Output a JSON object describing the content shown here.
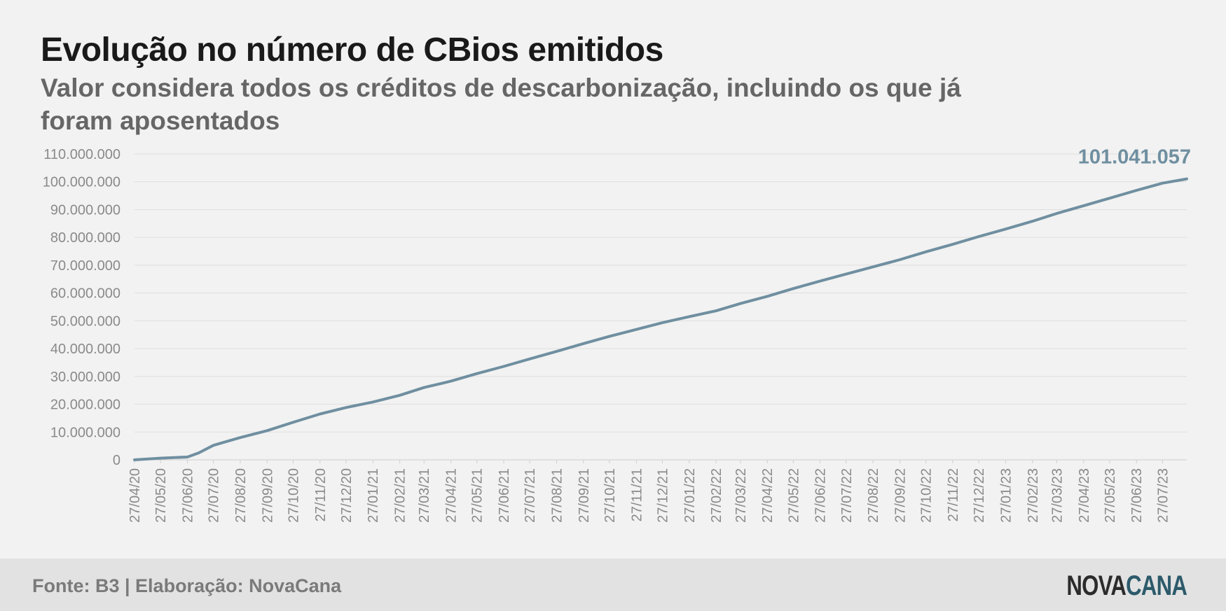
{
  "header": {
    "title": "Evolução no número de CBios emitidos",
    "subtitle": "Valor considera todos os créditos de descarbonização, incluindo os que já foram aposentados"
  },
  "footer": {
    "source": "Fonte: B3 | Elaboração: NovaCana",
    "logo_part1": "NOVA",
    "logo_part2": "CANA"
  },
  "colors": {
    "line": "#6f8fa0",
    "grid": "#dedede",
    "tick": "#8a8a8a",
    "logo_dark": "#2b2b2b",
    "logo_accent": "#2c5a6b"
  },
  "chart_data": {
    "type": "line",
    "title": "Evolução no número de CBios emitidos",
    "xlabel": "",
    "ylabel": "",
    "ylim": [
      0,
      110000000
    ],
    "grid": true,
    "legend": "none",
    "y_ticks": [
      0,
      10000000,
      20000000,
      30000000,
      40000000,
      50000000,
      60000000,
      70000000,
      80000000,
      90000000,
      100000000,
      110000000
    ],
    "y_tick_labels": [
      "0",
      "10.000.000",
      "20.000.000",
      "30.000.000",
      "40.000.000",
      "50.000.000",
      "60.000.000",
      "70.000.000",
      "80.000.000",
      "90.000.000",
      "100.000.000",
      "110.000.000"
    ],
    "x_tick_labels": [
      "27/04/20",
      "27/05/20",
      "27/06/20",
      "27/07/20",
      "27/08/20",
      "27/09/20",
      "27/10/20",
      "27/11/20",
      "27/12/20",
      "27/01/21",
      "27/02/21",
      "27/03/21",
      "27/04/21",
      "27/05/21",
      "27/06/21",
      "27/07/21",
      "27/08/21",
      "27/09/21",
      "27/10/21",
      "27/11/21",
      "27/12/21",
      "27/01/22",
      "27/02/22",
      "27/03/22",
      "27/04/22",
      "27/05/22",
      "27/06/22",
      "27/07/22",
      "27/08/22",
      "27/09/22",
      "27/10/22",
      "27/11/22",
      "27/12/22",
      "27/01/23",
      "27/02/23",
      "27/03/23",
      "27/04/23",
      "27/05/23",
      "27/06/23",
      "27/07/23"
    ],
    "end_label": "101.041.057",
    "series": [
      {
        "x": [
          "27/04/20",
          "27/05/20",
          "27/06/20",
          "10/07/20",
          "27/07/20",
          "27/08/20",
          "27/09/20",
          "27/10/20",
          "27/11/20",
          "27/12/20",
          "27/01/21",
          "27/02/21",
          "27/03/21",
          "27/04/21",
          "27/05/21",
          "27/06/21",
          "27/07/21",
          "27/08/21",
          "27/09/21",
          "27/10/21",
          "27/11/21",
          "27/12/21",
          "27/01/22",
          "27/02/22",
          "27/03/22",
          "27/04/22",
          "27/05/22",
          "27/06/22",
          "27/07/22",
          "27/08/22",
          "27/09/22",
          "27/10/22",
          "27/11/22",
          "27/12/22",
          "27/01/23",
          "27/02/23",
          "27/03/23",
          "27/04/23",
          "27/05/23",
          "27/06/23",
          "27/07/23",
          "24/08/23"
        ],
        "values": [
          0,
          600000,
          1000000,
          2500000,
          5200000,
          8000000,
          10500000,
          13500000,
          16500000,
          18800000,
          20800000,
          23200000,
          26000000,
          28300000,
          31000000,
          33600000,
          36300000,
          39000000,
          41800000,
          44400000,
          46900000,
          49300000,
          51500000,
          53600000,
          56200000,
          58800000,
          61600000,
          64300000,
          66800000,
          69400000,
          72000000,
          74800000,
          77500000,
          80300000,
          83000000,
          85800000,
          88600000,
          91400000,
          94100000,
          96900000,
          99500000,
          101041057
        ]
      }
    ]
  }
}
